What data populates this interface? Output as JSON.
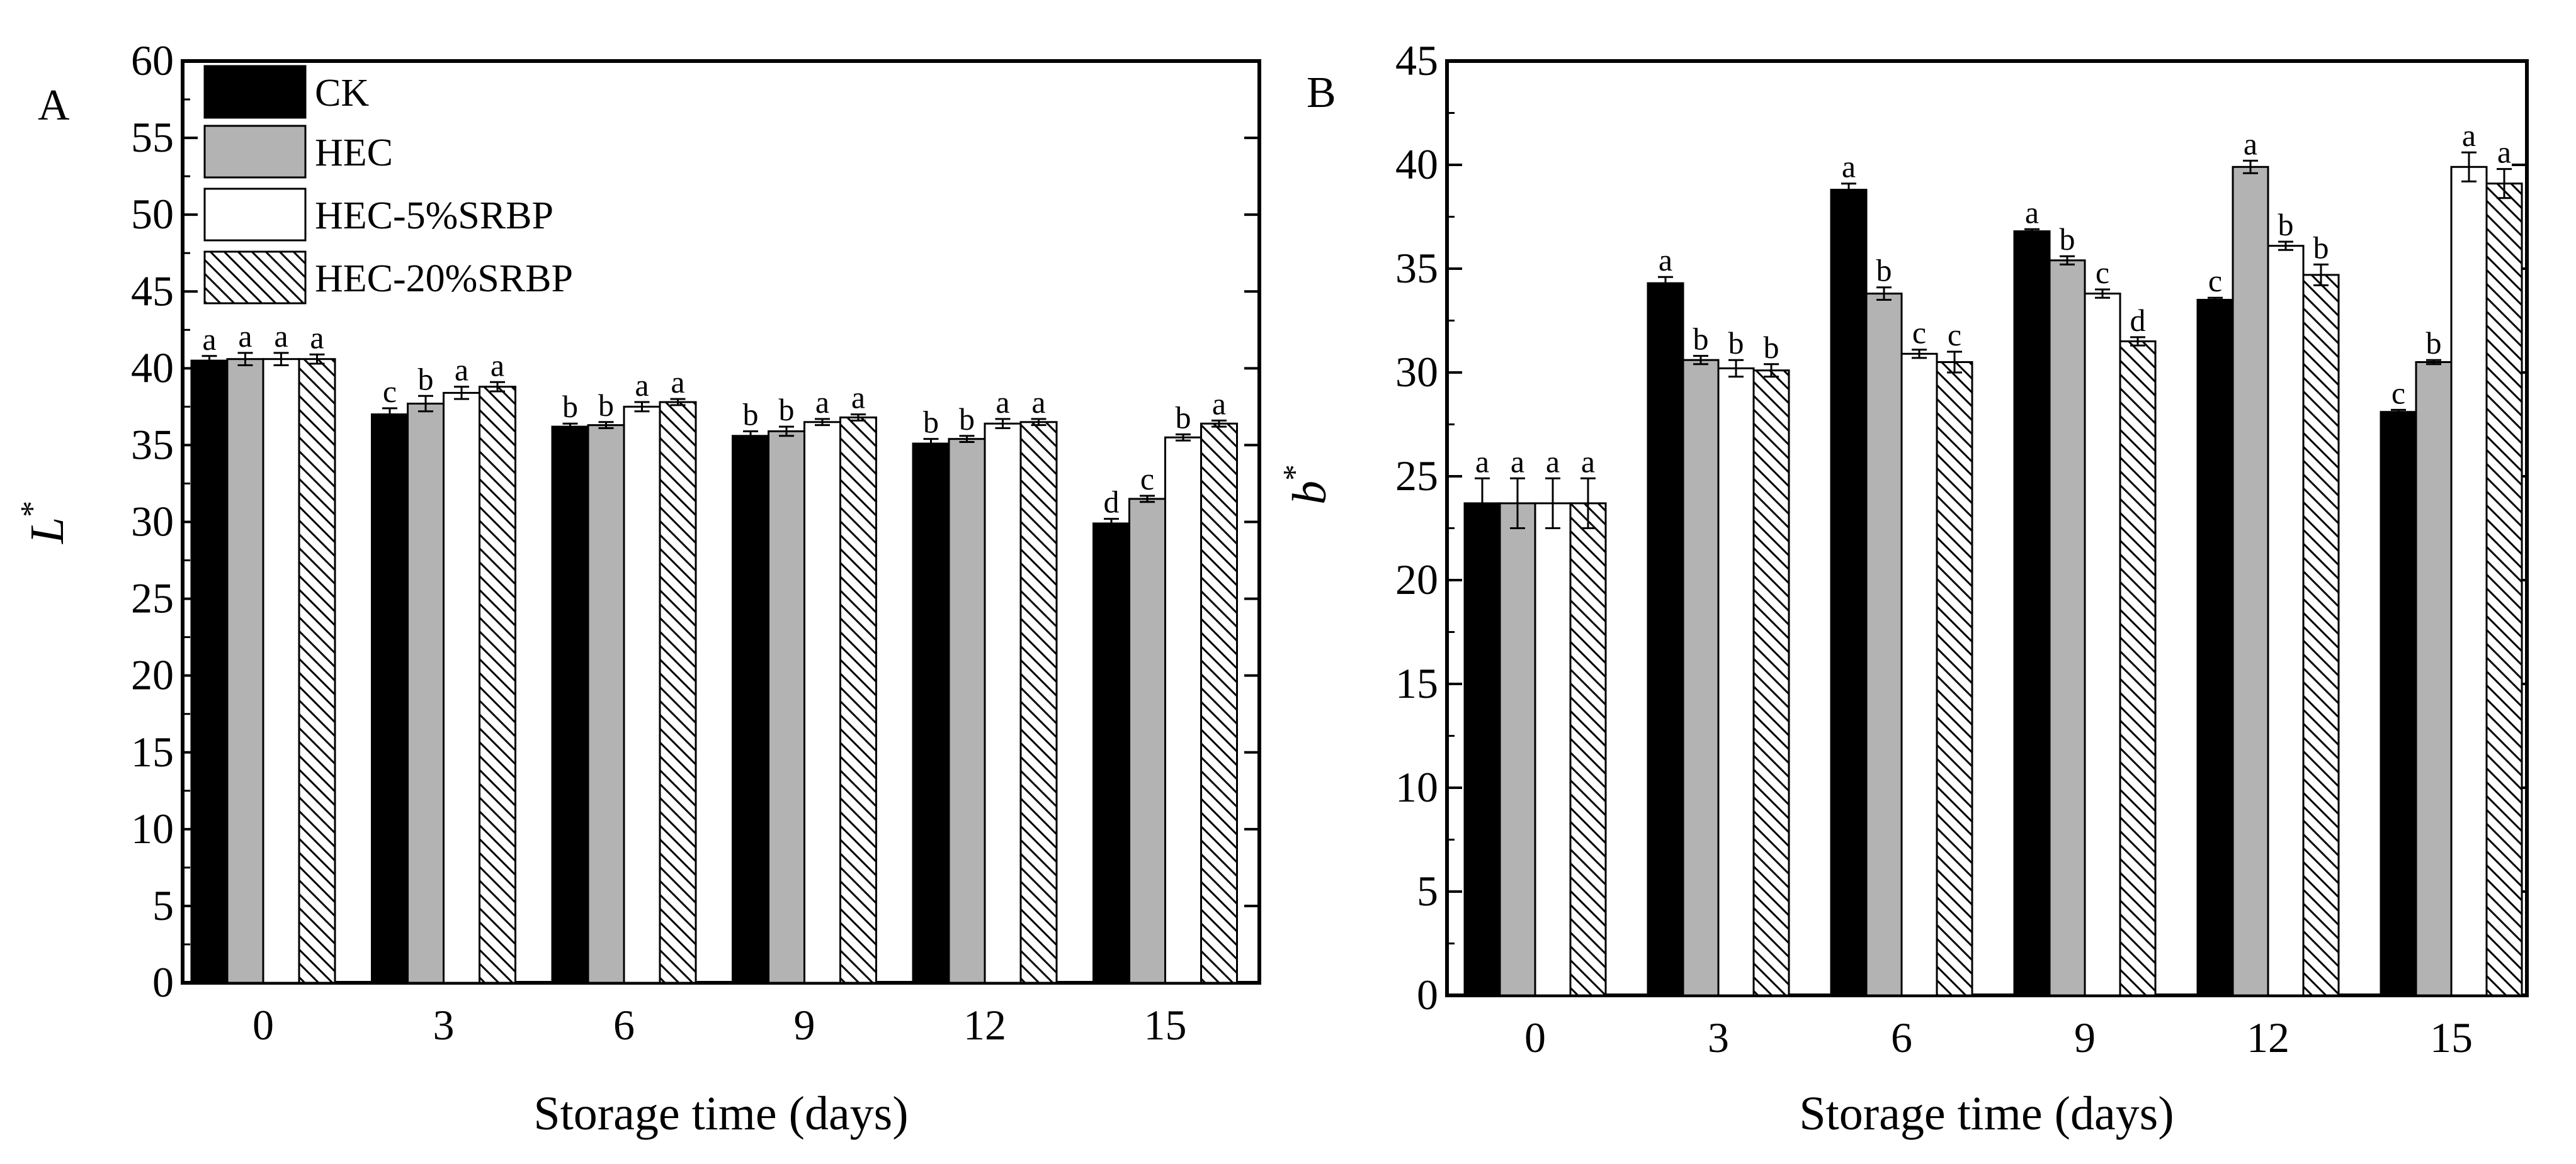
{
  "chart_data": [
    {
      "panel": "A",
      "type": "bar",
      "xlabel": "Storage time (days)",
      "ylabel_main": "L",
      "ylabel_sup": "*",
      "ylim": [
        0,
        60
      ],
      "yticks": [
        0,
        5,
        10,
        15,
        20,
        25,
        30,
        35,
        40,
        45,
        50,
        55,
        60
      ],
      "categories": [
        "0",
        "3",
        "6",
        "9",
        "12",
        "15"
      ],
      "legend": {
        "position": "top-left"
      },
      "series": [
        {
          "name": "CK",
          "style": "black",
          "values": [
            40.5,
            37.0,
            36.2,
            35.6,
            35.1,
            29.9
          ],
          "errors": [
            0.3,
            0.4,
            0.2,
            0.3,
            0.3,
            0.3
          ],
          "labels": [
            "a",
            "c",
            "b",
            "b",
            "b",
            "d"
          ]
        },
        {
          "name": "HEC",
          "style": "gray",
          "values": [
            40.6,
            37.7,
            36.3,
            35.9,
            35.4,
            31.5
          ],
          "errors": [
            0.4,
            0.5,
            0.2,
            0.3,
            0.2,
            0.2
          ],
          "labels": [
            "a",
            "b",
            "b",
            "b",
            "b",
            "c"
          ]
        },
        {
          "name": "HEC-5%SRBP",
          "style": "white",
          "values": [
            40.6,
            38.4,
            37.5,
            36.5,
            36.4,
            35.5
          ],
          "errors": [
            0.4,
            0.4,
            0.3,
            0.2,
            0.3,
            0.2
          ],
          "labels": [
            "a",
            "a",
            "a",
            "a",
            "a",
            "b"
          ]
        },
        {
          "name": "HEC-20%SRBP",
          "style": "hatch",
          "values": [
            40.6,
            38.8,
            37.8,
            36.8,
            36.5,
            36.4
          ],
          "errors": [
            0.3,
            0.3,
            0.2,
            0.2,
            0.2,
            0.2
          ],
          "labels": [
            "a",
            "a",
            "a",
            "a",
            "a",
            "a"
          ]
        }
      ]
    },
    {
      "panel": "B",
      "type": "bar",
      "xlabel": "Storage time (days)",
      "ylabel_main": "b",
      "ylabel_sup": "*",
      "ylim": [
        0,
        45
      ],
      "yticks": [
        0,
        5,
        10,
        15,
        20,
        25,
        30,
        35,
        40,
        45
      ],
      "categories": [
        "0",
        "3",
        "6",
        "9",
        "12",
        "15"
      ],
      "series": [
        {
          "name": "CK",
          "style": "black",
          "values": [
            23.7,
            34.3,
            38.8,
            36.8,
            33.5,
            28.1
          ],
          "errors": [
            1.2,
            0.3,
            0.3,
            0.1,
            0.1,
            0.1
          ],
          "labels": [
            "a",
            "a",
            "a",
            "a",
            "c",
            "c"
          ]
        },
        {
          "name": "HEC",
          "style": "gray",
          "values": [
            23.7,
            30.6,
            33.8,
            35.4,
            39.9,
            30.5
          ],
          "errors": [
            1.2,
            0.2,
            0.3,
            0.2,
            0.3,
            0.1
          ],
          "labels": [
            "a",
            "b",
            "b",
            "b",
            "a",
            "b"
          ]
        },
        {
          "name": "HEC-5%SRBP",
          "style": "white",
          "values": [
            23.7,
            30.2,
            30.9,
            33.8,
            36.1,
            39.9
          ],
          "errors": [
            1.2,
            0.4,
            0.2,
            0.2,
            0.2,
            0.7
          ],
          "labels": [
            "a",
            "b",
            "c",
            "c",
            "b",
            "a"
          ]
        },
        {
          "name": "HEC-20%SRBP",
          "style": "hatch",
          "values": [
            23.7,
            30.1,
            30.5,
            31.5,
            34.7,
            39.1
          ],
          "errors": [
            1.2,
            0.3,
            0.5,
            0.2,
            0.5,
            0.7
          ],
          "labels": [
            "a",
            "b",
            "c",
            "d",
            "b",
            "a"
          ]
        }
      ]
    }
  ]
}
